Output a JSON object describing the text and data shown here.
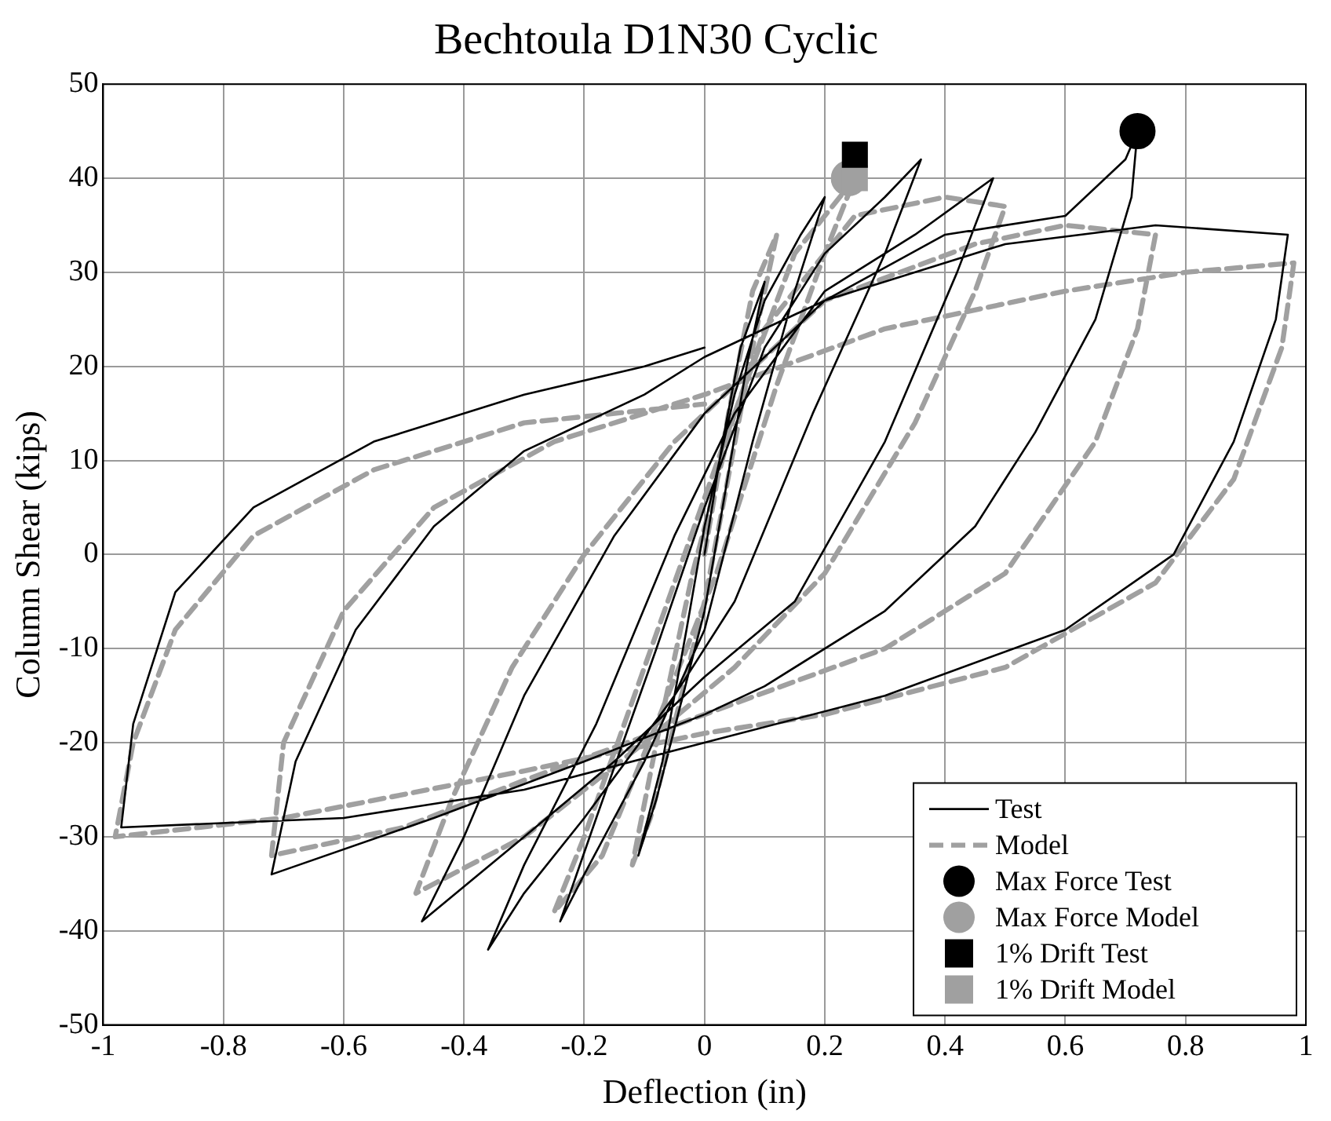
{
  "chart_data": {
    "type": "line",
    "title": "Bechtoula D1N30 Cyclic",
    "xlabel": "Deflection (in)",
    "ylabel": "Column Shear (kips)",
    "xlim": [
      -1,
      1
    ],
    "ylim": [
      -50,
      50
    ],
    "xticks": [
      -1,
      -0.8,
      -0.6,
      -0.4,
      -0.2,
      0,
      0.2,
      0.4,
      0.6,
      0.8,
      1
    ],
    "yticks": [
      -50,
      -40,
      -30,
      -20,
      -10,
      0,
      10,
      20,
      30,
      40,
      50
    ],
    "grid": true,
    "legend": "bottom right",
    "series": [
      {
        "name": "Test",
        "type": "line",
        "line_style": "solid",
        "color": "#000000",
        "x": [
          0,
          0.03,
          0.06,
          0.1,
          0.07,
          0.03,
          0,
          -0.04,
          -0.08,
          -0.11,
          -0.07,
          -0.03,
          0,
          0.05,
          0.1,
          0.16,
          0.2,
          0.15,
          0.08,
          0,
          -0.1,
          -0.2,
          -0.24,
          -0.18,
          -0.08,
          0,
          0.1,
          0.2,
          0.3,
          0.36,
          0.3,
          0.18,
          0.05,
          -0.05,
          -0.2,
          -0.3,
          -0.36,
          -0.3,
          -0.18,
          -0.05,
          0.05,
          0.2,
          0.35,
          0.48,
          0.42,
          0.3,
          0.15,
          0,
          -0.15,
          -0.3,
          -0.47,
          -0.4,
          -0.3,
          -0.15,
          0,
          0.2,
          0.4,
          0.6,
          0.7,
          0.72,
          0.71,
          0.65,
          0.55,
          0.45,
          0.3,
          0.1,
          0,
          -0.2,
          -0.45,
          -0.72,
          -0.68,
          -0.58,
          -0.45,
          -0.3,
          -0.1,
          0,
          0.2,
          0.5,
          0.75,
          0.97,
          0.95,
          0.88,
          0.78,
          0.6,
          0.3,
          0,
          -0.3,
          -0.6,
          -0.97,
          -0.95,
          -0.88,
          -0.75,
          -0.55,
          -0.3,
          -0.1,
          0
        ],
        "values": [
          0,
          12,
          22,
          29,
          20,
          5,
          -6,
          -16,
          -26,
          -32,
          -22,
          -8,
          3,
          17,
          27,
          34,
          38,
          28,
          12,
          -8,
          -22,
          -34,
          -39,
          -28,
          -10,
          5,
          22,
          32,
          38,
          42,
          32,
          15,
          -5,
          -15,
          -28,
          -36,
          -42,
          -33,
          -18,
          2,
          15,
          28,
          34,
          40,
          30,
          12,
          -5,
          -13,
          -22,
          -30,
          -39,
          -30,
          -15,
          2,
          15,
          27,
          34,
          36,
          42,
          45,
          38,
          25,
          13,
          3,
          -6,
          -14,
          -17,
          -22,
          -28,
          -34,
          -22,
          -8,
          3,
          11,
          17,
          21,
          27,
          33,
          35,
          34,
          25,
          12,
          0,
          -8,
          -15,
          -20,
          -25,
          -28,
          -29,
          -18,
          -4,
          5,
          12,
          17,
          20,
          22
        ]
      },
      {
        "name": "Model",
        "type": "line",
        "line_style": "dashed",
        "color": "#a0a0a0",
        "x": [
          0,
          0.04,
          0.08,
          0.12,
          0.08,
          0.03,
          0,
          -0.05,
          -0.09,
          -0.12,
          -0.08,
          -0.02,
          0.05,
          0.15,
          0.25,
          0.2,
          0.12,
          0.02,
          -0.08,
          -0.17,
          -0.25,
          -0.2,
          -0.1,
          0,
          0.1,
          0.25,
          0.4,
          0.5,
          0.45,
          0.35,
          0.2,
          0.05,
          -0.1,
          -0.3,
          -0.48,
          -0.42,
          -0.32,
          -0.2,
          -0.05,
          0,
          0.2,
          0.45,
          0.6,
          0.75,
          0.72,
          0.65,
          0.5,
          0.3,
          0,
          -0.3,
          -0.5,
          -0.72,
          -0.7,
          -0.6,
          -0.45,
          -0.25,
          0,
          0.3,
          0.6,
          0.8,
          0.98,
          0.96,
          0.88,
          0.75,
          0.5,
          0.2,
          0,
          -0.3,
          -0.7,
          -0.98,
          -0.95,
          -0.88,
          -0.75,
          -0.55,
          -0.3,
          0
        ],
        "values": [
          0,
          15,
          28,
          34,
          22,
          5,
          -5,
          -18,
          -28,
          -33,
          -20,
          -2,
          15,
          32,
          40,
          32,
          18,
          -2,
          -18,
          -32,
          -38,
          -30,
          -12,
          6,
          24,
          36,
          38,
          37,
          28,
          14,
          -2,
          -12,
          -20,
          -30,
          -36,
          -26,
          -12,
          0,
          12,
          15,
          27,
          33,
          35,
          34,
          24,
          12,
          -2,
          -10,
          -17,
          -24,
          -29,
          -32,
          -20,
          -6,
          5,
          12,
          17,
          24,
          28,
          30,
          31,
          22,
          8,
          -3,
          -12,
          -17,
          -19,
          -23,
          -28,
          -30,
          -20,
          -8,
          2,
          9,
          14,
          16
        ]
      },
      {
        "name": "Max Force Test",
        "type": "scatter",
        "marker": "circle",
        "color": "#000000",
        "x": [
          0.72
        ],
        "values": [
          45
        ]
      },
      {
        "name": "Max Force Model",
        "type": "scatter",
        "marker": "circle",
        "color": "#a0a0a0",
        "x": [
          0.24
        ],
        "values": [
          40
        ]
      },
      {
        "name": "1% Drift Test",
        "type": "scatter",
        "marker": "square",
        "color": "#000000",
        "x": [
          0.25
        ],
        "values": [
          42.5
        ]
      },
      {
        "name": "1% Drift Model",
        "type": "scatter",
        "marker": "square",
        "color": "#a0a0a0",
        "x": [
          0.25
        ],
        "values": [
          40
        ]
      }
    ]
  }
}
